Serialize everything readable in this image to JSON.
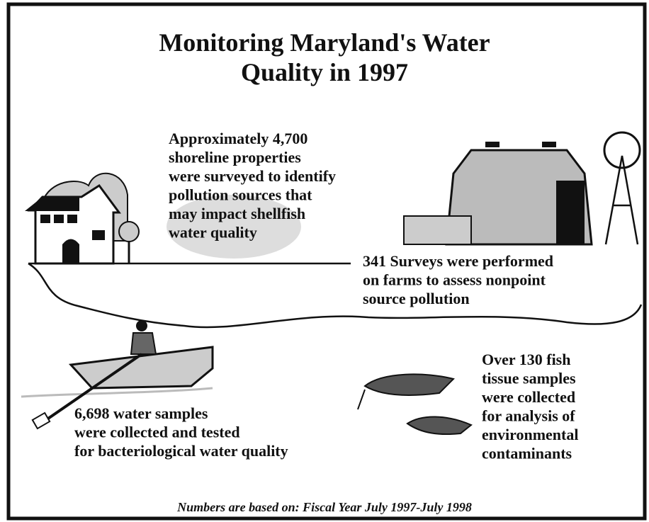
{
  "title": {
    "lines": [
      "Monitoring Maryland's Water",
      "Quality in 1997"
    ]
  },
  "facts": [
    {
      "lines": [
        "Approximately 4,700",
        "shoreline properties",
        "were surveyed to identify",
        "pollution sources that",
        "may impact shellfish",
        "water quality"
      ]
    },
    {
      "lines": [
        "341 Surveys were performed",
        "on farms to assess nonpoint",
        "source pollution"
      ]
    },
    {
      "lines": [
        "6,698 water samples",
        "were collected and tested",
        "for bacteriological water quality"
      ]
    },
    {
      "lines": [
        "Over 130 fish",
        "tissue samples",
        "were collected",
        "for analysis of",
        "environmental",
        "contaminants"
      ]
    }
  ],
  "footer": "Numbers are based on: Fiscal Year July 1997-July 1998"
}
